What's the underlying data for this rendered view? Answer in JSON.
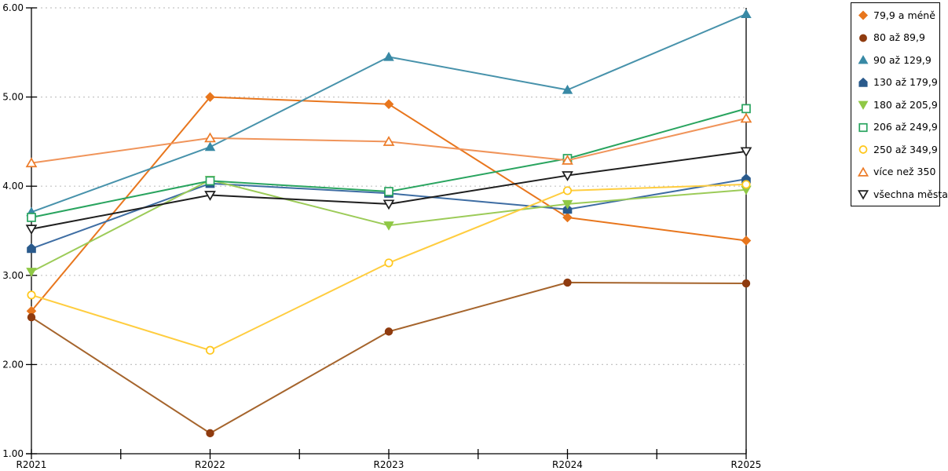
{
  "chart_data": {
    "type": "line",
    "title": "",
    "xlabel": "",
    "ylabel": "",
    "x_categories": [
      "R2021",
      "R2022",
      "R2023",
      "R2024",
      "R2025"
    ],
    "ylim": [
      1,
      6
    ],
    "y_ticks": [
      "1.00",
      "2.00",
      "3.00",
      "4.00",
      "5.00",
      "6.00"
    ],
    "grid": "horizontal dashed gridlines at 2.00-6.00",
    "legend_position": "top-right boxed",
    "series": [
      {
        "name": "79,9 a méně",
        "marker": "diamond",
        "color": "#E8761D",
        "line_color": "#E8761D",
        "values": [
          2.6,
          5.0,
          4.92,
          3.65,
          3.39
        ]
      },
      {
        "name": "80 až 89,9",
        "marker": "circle",
        "color": "#8F3B0F",
        "line_color": "#A5642C",
        "values": [
          2.53,
          1.23,
          2.37,
          2.92,
          2.91
        ]
      },
      {
        "name": "90 až 129,9",
        "marker": "triangle-up",
        "color": "#3889A5",
        "line_color": "#4792AB",
        "values": [
          3.71,
          4.44,
          5.45,
          5.08,
          5.93
        ]
      },
      {
        "name": "130 až 179,9",
        "marker": "pentagon",
        "color": "#2A5A8C",
        "line_color": "#3E6DA3",
        "values": [
          3.3,
          4.03,
          3.92,
          3.74,
          4.08
        ]
      },
      {
        "name": "180 až 205,9",
        "marker": "triangle-down",
        "color": "#8FC845",
        "line_color": "#9CCB58",
        "values": [
          3.04,
          4.07,
          3.56,
          3.8,
          3.96
        ]
      },
      {
        "name": "206 až 249,9",
        "marker": "square-open",
        "color": "#29A45F",
        "line_color": "#29A45F",
        "values": [
          3.65,
          4.06,
          3.94,
          4.31,
          4.87
        ]
      },
      {
        "name": "250 až 349,9",
        "marker": "circle-open",
        "color": "#FFC71C",
        "line_color": "#FFCD3F",
        "values": [
          2.78,
          2.16,
          3.14,
          3.95,
          4.02
        ]
      },
      {
        "name": "více než 350",
        "marker": "triangle-up-open",
        "color": "#EC7B28",
        "line_color": "#F0945A",
        "values": [
          4.26,
          4.54,
          4.5,
          4.29,
          4.76
        ]
      },
      {
        "name": "všechna města",
        "marker": "triangle-down-open",
        "color": "#1F1F1F",
        "line_color": "#1F1F1F",
        "values": [
          3.52,
          3.9,
          3.8,
          4.12,
          4.39
        ]
      }
    ]
  },
  "colors": {
    "background": "#FFFFFF",
    "grid": "#C4C4C4",
    "axis": "#000000",
    "legend_border": "#000000"
  }
}
